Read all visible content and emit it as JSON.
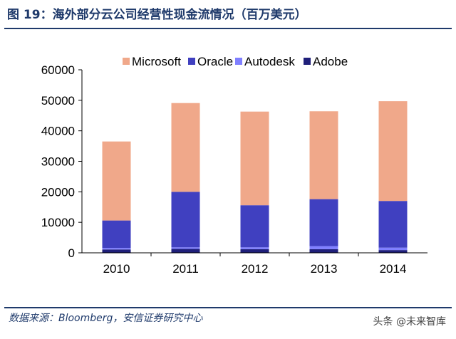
{
  "figure": {
    "title": "图 19：海外部分云公司经营性现金流情况（百万美元）",
    "source": "数据来源：Bloomberg，安信证券研究中心",
    "watermark": "头条 @未来智库"
  },
  "chart_data": {
    "type": "bar",
    "stacked": true,
    "title": "",
    "xlabel": "",
    "ylabel": "",
    "categories": [
      "2010",
      "2011",
      "2012",
      "2013",
      "2014"
    ],
    "ylim": [
      0,
      60000
    ],
    "yticks": [
      0,
      10000,
      20000,
      30000,
      40000,
      50000,
      60000
    ],
    "legend_position": "top",
    "grid": false,
    "series": [
      {
        "name": "Adobe",
        "color": "#1f1f7a",
        "values": [
          1100,
          1300,
          1200,
          1200,
          900
        ]
      },
      {
        "name": "Autodesk",
        "color": "#8080ff",
        "values": [
          500,
          500,
          600,
          1000,
          800
        ]
      },
      {
        "name": "Oracle",
        "color": "#4040c0",
        "values": [
          9000,
          18200,
          13800,
          15400,
          15300
        ]
      },
      {
        "name": "Microsoft",
        "color": "#f0a88a",
        "values": [
          25900,
          29100,
          30700,
          28800,
          32700
        ]
      }
    ],
    "legend_order": [
      "Microsoft",
      "Oracle",
      "Autodesk",
      "Adobe"
    ]
  }
}
